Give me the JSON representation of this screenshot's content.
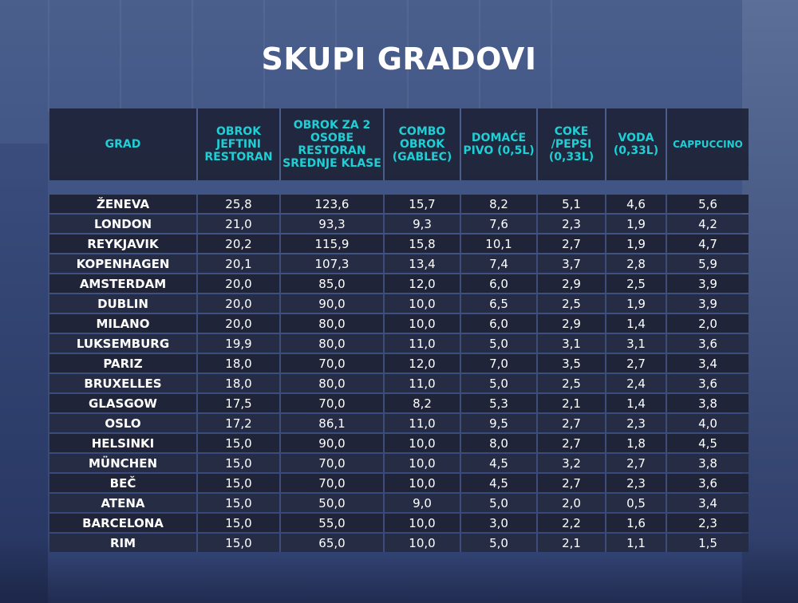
{
  "title": "SKUPI GRADOVI",
  "chart_data": {
    "type": "table",
    "title": "SKUPI GRADOVI",
    "columns": [
      "GRAD",
      "OBROK JEFTINI RESTORAN",
      "OBROK ZA 2 OSOBE RESTORAN SREDNJE KLASE",
      "COMBO OBROK (GABLEC)",
      "DOMAĆE PIVO (0,5L)",
      "COKE /PEPSI (0,33L)",
      "VODA (0,33L)",
      "CAPPUCCINO"
    ],
    "rows": [
      [
        "ŽENEVA",
        "25,8",
        "123,6",
        "15,7",
        "8,2",
        "5,1",
        "4,6",
        "5,6"
      ],
      [
        "LONDON",
        "21,0",
        "93,3",
        "9,3",
        "7,6",
        "2,3",
        "1,9",
        "4,2"
      ],
      [
        "REYKJAVIK",
        "20,2",
        "115,9",
        "15,8",
        "10,1",
        "2,7",
        "1,9",
        "4,7"
      ],
      [
        "KOPENHAGEN",
        "20,1",
        "107,3",
        "13,4",
        "7,4",
        "3,7",
        "2,8",
        "5,9"
      ],
      [
        "AMSTERDAM",
        "20,0",
        "85,0",
        "12,0",
        "6,0",
        "2,9",
        "2,5",
        "3,9"
      ],
      [
        "DUBLIN",
        "20,0",
        "90,0",
        "10,0",
        "6,5",
        "2,5",
        "1,9",
        "3,9"
      ],
      [
        "MILANO",
        "20,0",
        "80,0",
        "10,0",
        "6,0",
        "2,9",
        "1,4",
        "2,0"
      ],
      [
        "LUKSEMBURG",
        "19,9",
        "80,0",
        "11,0",
        "5,0",
        "3,1",
        "3,1",
        "3,6"
      ],
      [
        "PARIZ",
        "18,0",
        "70,0",
        "12,0",
        "7,0",
        "3,5",
        "2,7",
        "3,4"
      ],
      [
        "BRUXELLES",
        "18,0",
        "80,0",
        "11,0",
        "5,0",
        "2,5",
        "2,4",
        "3,6"
      ],
      [
        "GLASGOW",
        "17,5",
        "70,0",
        "8,2",
        "5,3",
        "2,1",
        "1,4",
        "3,8"
      ],
      [
        "OSLO",
        "17,2",
        "86,1",
        "11,0",
        "9,5",
        "2,7",
        "2,3",
        "4,0"
      ],
      [
        "HELSINKI",
        "15,0",
        "90,0",
        "10,0",
        "8,0",
        "2,7",
        "1,8",
        "4,5"
      ],
      [
        "MÜNCHEN",
        "15,0",
        "70,0",
        "10,0",
        "4,5",
        "3,2",
        "2,7",
        "3,8"
      ],
      [
        "BEČ",
        "15,0",
        "70,0",
        "10,0",
        "4,5",
        "2,7",
        "2,3",
        "3,6"
      ],
      [
        "ATENA",
        "15,0",
        "50,0",
        "9,0",
        "5,0",
        "2,0",
        "0,5",
        "3,4"
      ],
      [
        "BARCELONA",
        "15,0",
        "55,0",
        "10,0",
        "3,0",
        "2,2",
        "1,6",
        "2,3"
      ],
      [
        "RIM",
        "15,0",
        "65,0",
        "10,0",
        "5,0",
        "2,1",
        "1,1",
        "1,5"
      ]
    ]
  },
  "colors": {
    "header_text": "#1ecfd6",
    "body_text": "#ffffff",
    "row_dark": "#1f2438",
    "row_light": "#262c44"
  }
}
